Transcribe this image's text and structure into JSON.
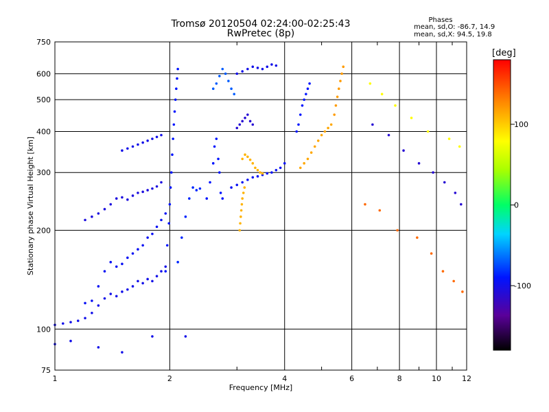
{
  "chart_data": {
    "type": "scatter",
    "title": "Tromsø 20120504 02:24:00-02:25:43",
    "subtitle": "RwPretec (8p)",
    "xlabel": "Frequency [MHz]",
    "ylabel": "Stationary phase Virtual Height [km]",
    "x_scale": "log",
    "y_scale": "log",
    "xlim": [
      1,
      12
    ],
    "ylim": [
      75,
      750
    ],
    "x_ticks": [
      1,
      2,
      4,
      6,
      8,
      10,
      12
    ],
    "y_ticks": [
      75,
      100,
      200,
      300,
      400,
      500,
      600,
      750
    ],
    "grid": true,
    "stats": {
      "heading": "Phases",
      "line1": "mean, sd,O: -86.7, 14.9",
      "line2": "mean, sd,X:  94.5, 19.8"
    },
    "colorbar": {
      "unit": "[deg]",
      "range": [
        -180,
        180
      ],
      "ticks": [
        100,
        0,
        -100
      ]
    },
    "traces": [
      {
        "phase": -100,
        "points": [
          [
            1.0,
            103
          ],
          [
            1.05,
            104
          ],
          [
            1.1,
            105
          ],
          [
            1.15,
            106
          ],
          [
            1.2,
            108
          ],
          [
            1.25,
            112
          ],
          [
            1.3,
            118
          ],
          [
            1.35,
            124
          ],
          [
            1.4,
            128
          ],
          [
            1.45,
            126
          ],
          [
            1.5,
            130
          ],
          [
            1.55,
            132
          ],
          [
            1.6,
            135
          ],
          [
            1.65,
            140
          ],
          [
            1.7,
            138
          ],
          [
            1.75,
            142
          ],
          [
            1.8,
            140
          ],
          [
            1.85,
            145
          ],
          [
            1.9,
            150
          ],
          [
            1.95,
            155
          ]
        ]
      },
      {
        "phase": -95,
        "points": [
          [
            1.2,
            120
          ],
          [
            1.25,
            122
          ],
          [
            1.3,
            135
          ],
          [
            1.35,
            150
          ],
          [
            1.4,
            160
          ],
          [
            1.45,
            155
          ],
          [
            1.5,
            158
          ],
          [
            1.55,
            165
          ],
          [
            1.6,
            170
          ],
          [
            1.65,
            175
          ],
          [
            1.7,
            180
          ],
          [
            1.75,
            190
          ],
          [
            1.8,
            195
          ],
          [
            1.85,
            205
          ],
          [
            1.9,
            215
          ],
          [
            1.95,
            225
          ]
        ]
      },
      {
        "phase": -105,
        "points": [
          [
            1.2,
            215
          ],
          [
            1.25,
            220
          ],
          [
            1.3,
            225
          ],
          [
            1.35,
            232
          ],
          [
            1.4,
            240
          ],
          [
            1.45,
            250
          ],
          [
            1.5,
            252
          ],
          [
            1.55,
            248
          ],
          [
            1.6,
            255
          ],
          [
            1.65,
            260
          ],
          [
            1.7,
            262
          ],
          [
            1.75,
            265
          ],
          [
            1.8,
            268
          ],
          [
            1.85,
            272
          ],
          [
            1.9,
            280
          ]
        ]
      },
      {
        "phase": -100,
        "points": [
          [
            1.5,
            350
          ],
          [
            1.55,
            355
          ],
          [
            1.6,
            360
          ],
          [
            1.65,
            365
          ],
          [
            1.7,
            370
          ],
          [
            1.75,
            375
          ],
          [
            1.8,
            380
          ],
          [
            1.85,
            385
          ],
          [
            1.9,
            390
          ]
        ]
      },
      {
        "phase": -90,
        "points": [
          [
            1.95,
            150
          ],
          [
            1.97,
            180
          ],
          [
            1.99,
            210
          ],
          [
            2.0,
            240
          ],
          [
            2.01,
            270
          ],
          [
            2.02,
            300
          ],
          [
            2.03,
            340
          ],
          [
            2.04,
            380
          ],
          [
            2.05,
            420
          ],
          [
            2.06,
            460
          ],
          [
            2.07,
            500
          ],
          [
            2.08,
            540
          ],
          [
            2.09,
            580
          ],
          [
            2.1,
            620
          ]
        ]
      },
      {
        "phase": -85,
        "points": [
          [
            2.1,
            160
          ],
          [
            2.15,
            190
          ],
          [
            2.2,
            220
          ],
          [
            2.25,
            250
          ],
          [
            2.3,
            270
          ],
          [
            2.35,
            265
          ],
          [
            2.4,
            268
          ]
        ]
      },
      {
        "phase": -90,
        "points": [
          [
            2.5,
            250
          ],
          [
            2.55,
            280
          ],
          [
            2.6,
            320
          ],
          [
            2.62,
            360
          ],
          [
            2.65,
            380
          ],
          [
            2.68,
            330
          ],
          [
            2.7,
            300
          ],
          [
            2.72,
            260
          ],
          [
            2.75,
            250
          ]
        ]
      },
      {
        "phase": -70,
        "points": [
          [
            2.6,
            540
          ],
          [
            2.65,
            560
          ],
          [
            2.7,
            590
          ],
          [
            2.75,
            620
          ],
          [
            2.8,
            600
          ],
          [
            2.85,
            570
          ],
          [
            2.9,
            540
          ],
          [
            2.95,
            520
          ]
        ]
      },
      {
        "phase": -95,
        "points": [
          [
            2.9,
            270
          ],
          [
            3.0,
            275
          ],
          [
            3.1,
            280
          ],
          [
            3.2,
            285
          ],
          [
            3.3,
            290
          ],
          [
            3.4,
            292
          ],
          [
            3.5,
            295
          ],
          [
            3.6,
            298
          ],
          [
            3.7,
            300
          ],
          [
            3.8,
            305
          ],
          [
            3.9,
            310
          ],
          [
            4.0,
            320
          ]
        ]
      },
      {
        "phase": -100,
        "points": [
          [
            3.0,
            600
          ],
          [
            3.1,
            610
          ],
          [
            3.2,
            620
          ],
          [
            3.3,
            630
          ],
          [
            3.4,
            625
          ],
          [
            3.5,
            620
          ],
          [
            3.6,
            630
          ],
          [
            3.7,
            640
          ],
          [
            3.8,
            635
          ]
        ]
      },
      {
        "phase": -110,
        "points": [
          [
            3.0,
            410
          ],
          [
            3.05,
            420
          ],
          [
            3.1,
            430
          ],
          [
            3.15,
            440
          ],
          [
            3.2,
            450
          ],
          [
            3.25,
            430
          ],
          [
            3.3,
            420
          ]
        ]
      },
      {
        "phase": 110,
        "points": [
          [
            3.1,
            330
          ],
          [
            3.15,
            340
          ],
          [
            3.2,
            335
          ],
          [
            3.25,
            328
          ],
          [
            3.3,
            320
          ],
          [
            3.35,
            310
          ],
          [
            3.4,
            305
          ],
          [
            3.45,
            300
          ],
          [
            3.5,
            298
          ]
        ]
      },
      {
        "phase": 110,
        "points": [
          [
            3.05,
            200
          ],
          [
            3.06,
            210
          ],
          [
            3.07,
            220
          ],
          [
            3.08,
            230
          ],
          [
            3.09,
            240
          ],
          [
            3.1,
            250
          ],
          [
            3.12,
            260
          ],
          [
            3.14,
            270
          ]
        ]
      },
      {
        "phase": -90,
        "points": [
          [
            4.3,
            400
          ],
          [
            4.35,
            420
          ],
          [
            4.4,
            450
          ],
          [
            4.45,
            480
          ],
          [
            4.5,
            500
          ],
          [
            4.55,
            520
          ],
          [
            4.6,
            540
          ],
          [
            4.65,
            560
          ]
        ]
      },
      {
        "phase": 115,
        "points": [
          [
            4.4,
            310
          ],
          [
            4.5,
            320
          ],
          [
            4.6,
            330
          ],
          [
            4.7,
            345
          ],
          [
            4.8,
            360
          ],
          [
            4.9,
            375
          ],
          [
            5.0,
            390
          ],
          [
            5.1,
            400
          ],
          [
            5.2,
            410
          ],
          [
            5.3,
            420
          ]
        ]
      },
      {
        "phase": 120,
        "points": [
          [
            5.4,
            450
          ],
          [
            5.45,
            480
          ],
          [
            5.5,
            510
          ],
          [
            5.55,
            540
          ],
          [
            5.6,
            570
          ],
          [
            5.65,
            600
          ],
          [
            5.7,
            630
          ]
        ]
      },
      {
        "phase": -100,
        "points": [
          [
            1.0,
            90
          ],
          [
            1.1,
            92
          ],
          [
            1.3,
            88
          ],
          [
            1.5,
            85
          ],
          [
            1.8,
            95
          ],
          [
            2.2,
            95
          ]
        ]
      },
      {
        "phase": 80,
        "points": [
          [
            6.7,
            560
          ],
          [
            7.2,
            520
          ],
          [
            7.8,
            480
          ],
          [
            8.6,
            440
          ],
          [
            9.5,
            400
          ],
          [
            10.8,
            380
          ],
          [
            11.5,
            360
          ]
        ]
      },
      {
        "phase": -110,
        "points": [
          [
            6.8,
            420
          ],
          [
            7.5,
            390
          ],
          [
            8.2,
            350
          ],
          [
            9.0,
            320
          ],
          [
            9.8,
            300
          ],
          [
            10.5,
            280
          ],
          [
            11.2,
            260
          ],
          [
            11.6,
            240
          ]
        ]
      },
      {
        "phase": 140,
        "points": [
          [
            6.5,
            240
          ],
          [
            7.1,
            230
          ],
          [
            7.9,
            200
          ],
          [
            8.9,
            190
          ],
          [
            9.7,
            170
          ],
          [
            10.4,
            150
          ],
          [
            11.1,
            140
          ],
          [
            11.7,
            130
          ]
        ]
      }
    ]
  }
}
